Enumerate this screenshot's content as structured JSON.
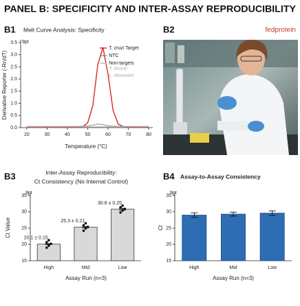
{
  "header": {
    "title": "PANEL B: SPECIFICITY AND INTER-ASSAY REPRODUCIBILITY"
  },
  "photo": {
    "label": "B2",
    "brand": "fedprotein"
  },
  "chart_data": [
    {
      "type": "line",
      "panel": "B1",
      "title": "Melt Curve Analysis: Specificity",
      "annotation": "9pt",
      "x_label": "Temperature (°C)",
      "y_label": "Derivative Reporter (-Rn/dT)",
      "x": [
        20,
        22.5,
        25,
        27.5,
        30,
        32.5,
        35,
        37.5,
        40,
        42.5,
        45,
        47.5,
        50,
        52.5,
        55,
        57.5,
        60,
        62.5,
        65,
        67.5,
        70,
        72.5,
        75,
        77.5,
        80
      ],
      "series": [
        {
          "name": "T. cruzi Target",
          "color": "#d62728",
          "values": [
            0.02,
            0.02,
            0.02,
            0.02,
            0.02,
            0.02,
            0.02,
            0.02,
            0.02,
            0.02,
            0.02,
            0.03,
            0.2,
            0.9,
            2.6,
            3.3,
            2.2,
            0.7,
            0.15,
            0.04,
            0.02,
            0.02,
            0.02,
            0.02,
            0.02
          ]
        },
        {
          "name": "NTC",
          "color": "#8c8c8c",
          "values": [
            0.05,
            0.05,
            0.05,
            0.05,
            0.05,
            0.05,
            0.05,
            0.05,
            0.05,
            0.05,
            0.05,
            0.06,
            0.08,
            0.1,
            0.15,
            0.12,
            0.08,
            0.06,
            0.05,
            0.05,
            0.05,
            0.05,
            0.05,
            0.05,
            0.05
          ]
        },
        {
          "name": "Non-targets",
          "color": "#b5b5b5",
          "values": [
            0.03,
            0.03,
            0.03,
            0.03,
            0.03,
            0.03,
            0.03,
            0.03,
            0.03,
            0.03,
            0.03,
            0.03,
            0.03,
            0.03,
            0.03,
            0.03,
            0.03,
            0.03,
            0.03,
            0.03,
            0.03,
            0.03,
            0.03,
            0.03,
            0.03
          ]
        }
      ],
      "legend_notes": [
        "T. brucei",
        "L. donovani"
      ],
      "xlim": [
        17,
        82
      ],
      "xticks": [
        20,
        30,
        40,
        50,
        60,
        70,
        80
      ],
      "ylim": [
        0,
        3.5
      ],
      "yticks": [
        {
          "value": 0,
          "label": "0.0"
        },
        {
          "value": 0.5,
          "label": "0.5"
        },
        {
          "value": 1,
          "label": "1.0"
        },
        {
          "value": 1.5,
          "label": "1.5"
        },
        {
          "value": 2,
          "label": "2.0"
        },
        {
          "value": 2.5,
          "label": "2.5"
        },
        {
          "value": 3,
          "label": "3.0"
        },
        3.5
      ]
    },
    {
      "type": "bar",
      "panel": "B3",
      "title": "Inter-Assay Reproducibility:",
      "subtitle": "Ct Consistency (No Internal Control)",
      "annotation": "9pt",
      "x_label": "Assay Run (n=3)",
      "y_label": "Ct Value",
      "categories": [
        "High",
        "Mid",
        "Low"
      ],
      "values": [
        20.1,
        25.3,
        30.8
      ],
      "errors": [
        0.15,
        0.21,
        0.25
      ],
      "value_labels": [
        "20.1 ± 0.15",
        "25.3 ± 0.21",
        "30.8 ± 0.25"
      ],
      "points": [
        [
          19.0,
          19.6,
          20.2,
          20.7,
          21.3
        ],
        [
          24.2,
          24.9,
          25.4,
          25.9,
          26.5
        ],
        [
          29.8,
          30.4,
          30.9,
          31.4,
          31.9
        ]
      ],
      "color": "#d9d9d9",
      "edge_color": "#333333",
      "ylim": [
        15,
        35
      ],
      "yticks": [
        15,
        20,
        25,
        30,
        35
      ]
    },
    {
      "type": "bar",
      "panel": "B4",
      "title": "Assay-to-Assay Consistency",
      "annotation": "9pt",
      "x_label": "Assay Run (n=3)",
      "y_label": "Ct",
      "categories": [
        "High",
        "Mid",
        "Low"
      ],
      "values": [
        29.0,
        29.3,
        29.6
      ],
      "errors": [
        0.7,
        0.6,
        0.7
      ],
      "color": "#2e6db4",
      "edge_color": "#1d4f8a",
      "ylim": [
        15,
        35
      ],
      "yticks": [
        15,
        20,
        25,
        30,
        35
      ]
    }
  ]
}
